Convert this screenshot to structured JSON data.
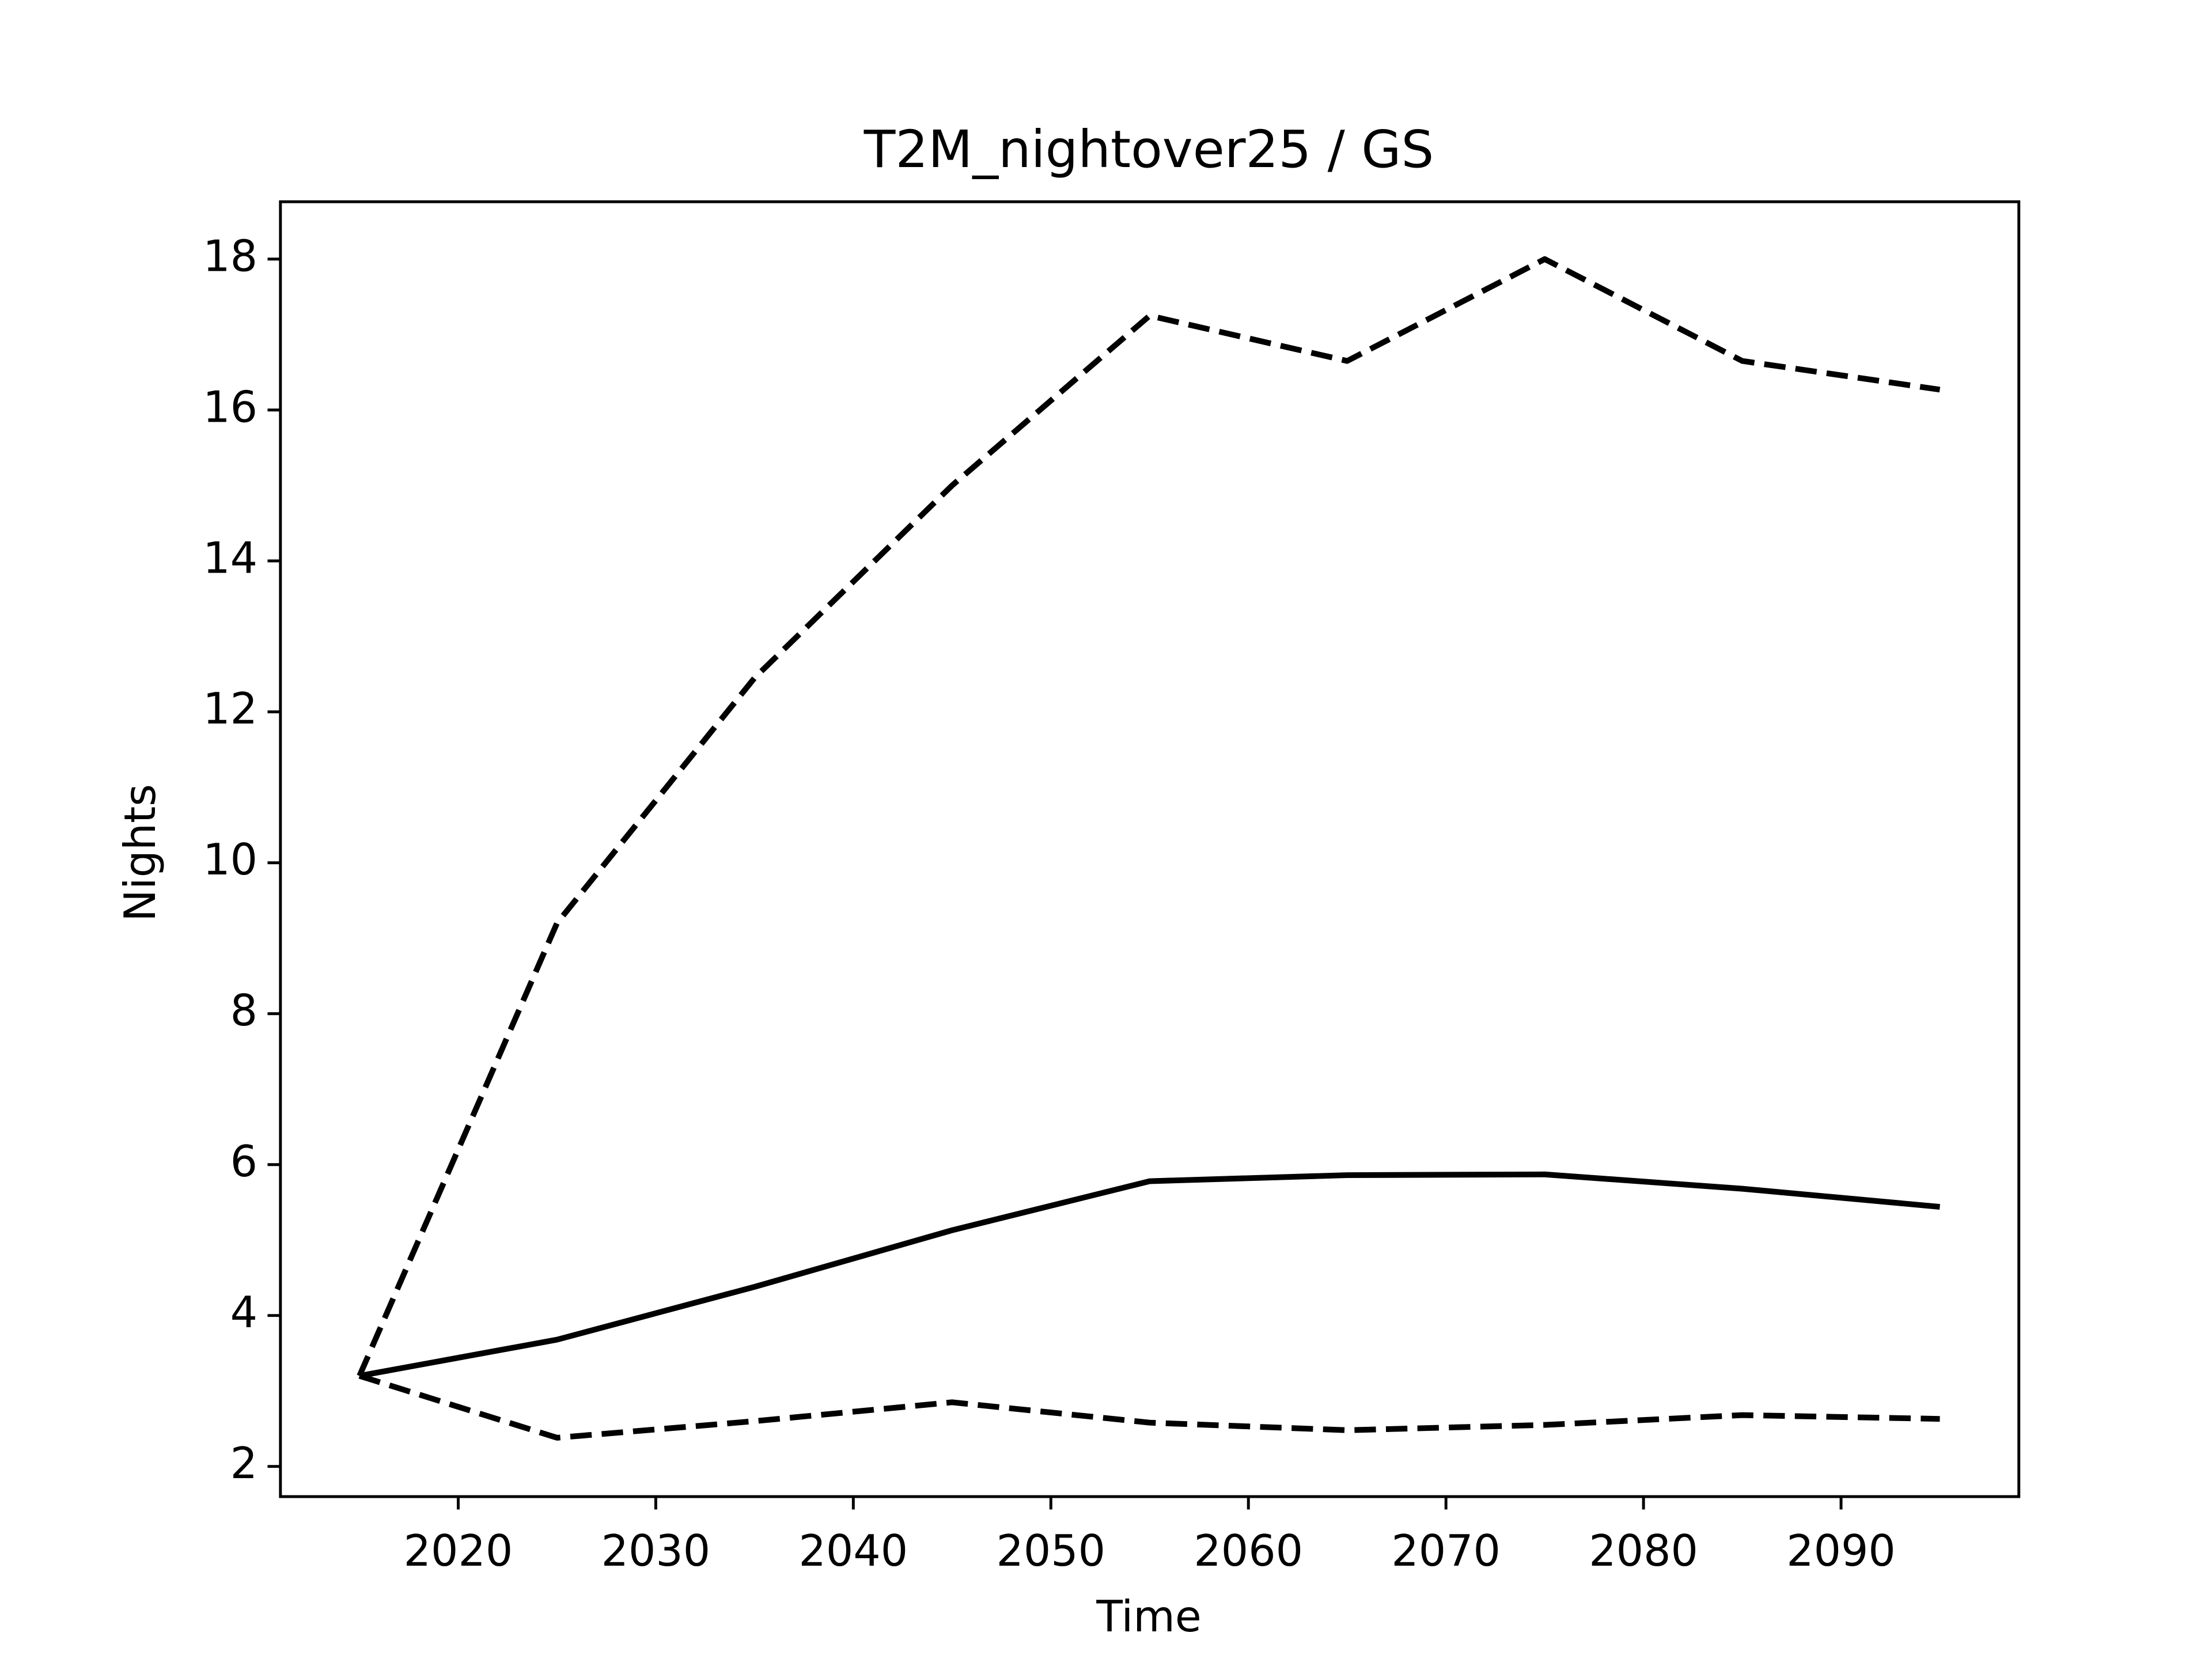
{
  "chart_data": {
    "type": "line",
    "title": "T2M_nightover25 / GS",
    "x_label": "Time",
    "y_label": "Nights",
    "x": [
      2015,
      2025,
      2035,
      2045,
      2055,
      2065,
      2075,
      2085,
      2095
    ],
    "series": [
      {
        "color": "#000000",
        "dashed": false,
        "values": [
          3.2,
          3.68,
          4.38,
          5.13,
          5.78,
          5.86,
          5.87,
          5.68,
          5.44
        ]
      },
      {
        "color": "#000000",
        "dashed": true,
        "values": [
          3.2,
          9.2,
          12.45,
          15.0,
          17.25,
          16.65,
          18.0,
          16.65,
          16.27
        ]
      },
      {
        "color": "#000000",
        "dashed": true,
        "values": [
          3.2,
          2.38,
          2.6,
          2.85,
          2.58,
          2.48,
          2.55,
          2.68,
          2.63
        ]
      }
    ],
    "xlim": [
      2011,
      2099
    ],
    "ylim": [
      1.6,
      18.76
    ],
    "xticks": [
      2020,
      2030,
      2040,
      2050,
      2060,
      2070,
      2080,
      2090
    ],
    "yticks": [
      2,
      4,
      6,
      8,
      10,
      12,
      14,
      16,
      18
    ],
    "grid": false
  }
}
